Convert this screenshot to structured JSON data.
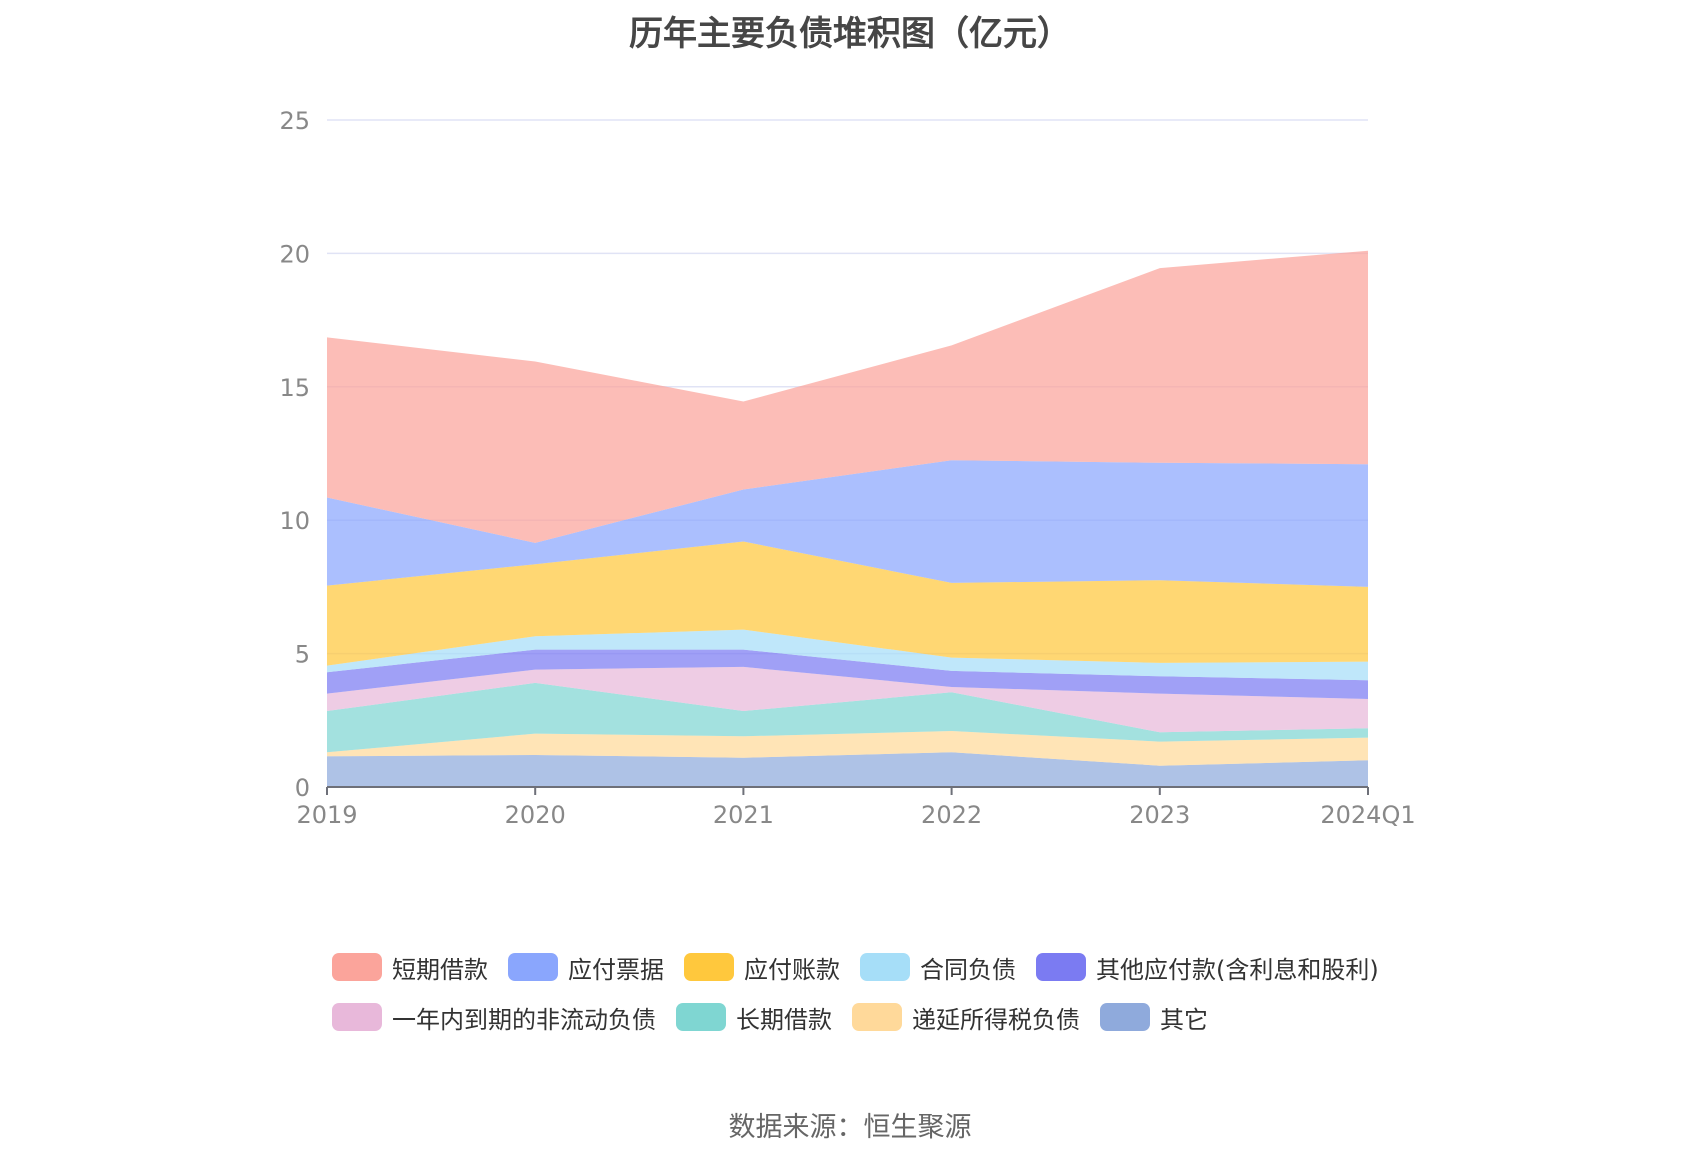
{
  "title": "历年主要负债堆积图（亿元）",
  "source": "数据来源：恒生聚源",
  "chart_data": {
    "type": "area",
    "stacked": true,
    "x": [
      "2019",
      "2020",
      "2021",
      "2022",
      "2023",
      "2024Q1"
    ],
    "ylim": [
      0,
      25
    ],
    "yticks": [
      0,
      5,
      10,
      15,
      20,
      25
    ],
    "grid": true,
    "legend_position": "bottom",
    "series": [
      {
        "name": "其它",
        "color": "#8FAADC",
        "values": [
          1.15,
          1.2,
          1.1,
          1.3,
          0.8,
          1.0
        ]
      },
      {
        "name": "递延所得税负债",
        "color": "#FFD99A",
        "values": [
          0.15,
          0.8,
          0.8,
          0.8,
          0.9,
          0.85
        ]
      },
      {
        "name": "长期借款",
        "color": "#7FD6D2",
        "values": [
          1.55,
          1.9,
          0.95,
          1.45,
          0.35,
          0.35
        ]
      },
      {
        "name": "一年内到期的非流动负债",
        "color": "#E8B8DA",
        "values": [
          0.65,
          0.5,
          1.65,
          0.2,
          1.45,
          1.1
        ]
      },
      {
        "name": "其他应付款(含利息和股利)",
        "color": "#7B7BF2",
        "values": [
          0.8,
          0.75,
          0.65,
          0.6,
          0.65,
          0.7
        ]
      },
      {
        "name": "合同负债",
        "color": "#A6DEF8",
        "values": [
          0.25,
          0.5,
          0.75,
          0.5,
          0.5,
          0.7
        ]
      },
      {
        "name": "应付账款",
        "color": "#FFC83D",
        "values": [
          3.0,
          2.7,
          3.3,
          2.8,
          3.1,
          2.8
        ]
      },
      {
        "name": "应付票据",
        "color": "#8AA6FD",
        "values": [
          3.3,
          0.8,
          1.95,
          4.6,
          4.4,
          4.6
        ]
      },
      {
        "name": "短期借款",
        "color": "#FBA49B",
        "values": [
          6.0,
          6.8,
          3.3,
          4.3,
          7.3,
          8.0
        ]
      }
    ],
    "legend_order": [
      "短期借款",
      "应付票据",
      "应付账款",
      "合同负债",
      "其他应付款(含利息和股利)",
      "一年内到期的非流动负债",
      "长期借款",
      "递延所得税负债",
      "其它"
    ]
  }
}
